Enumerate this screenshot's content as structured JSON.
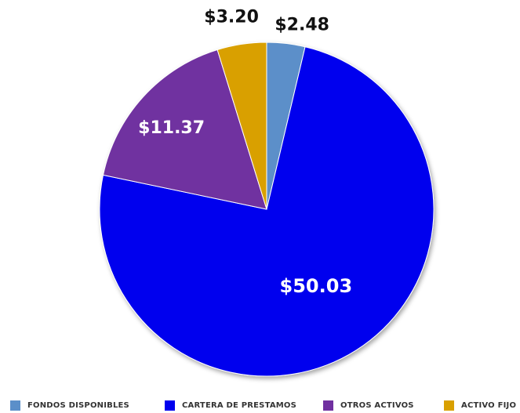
{
  "chart_data": {
    "type": "pie",
    "title": "",
    "slices": [
      {
        "label": "FONDOS DISPONIBLES",
        "value": 2.48,
        "display": "$2.48",
        "color": "#5b8fc9"
      },
      {
        "label": "CARTERA DE PRESTAMOS",
        "value": 50.03,
        "display": "$50.03",
        "color": "#0000ee"
      },
      {
        "label": "OTROS ACTIVOS",
        "value": 11.37,
        "display": "$11.37",
        "color": "#7030a0"
      },
      {
        "label": "ACTIVO FIJO",
        "value": 3.2,
        "display": "$3.20",
        "color": "#d9a000"
      }
    ],
    "start": "12 o'clock",
    "direction": "clockwise",
    "legend": "bottom"
  }
}
